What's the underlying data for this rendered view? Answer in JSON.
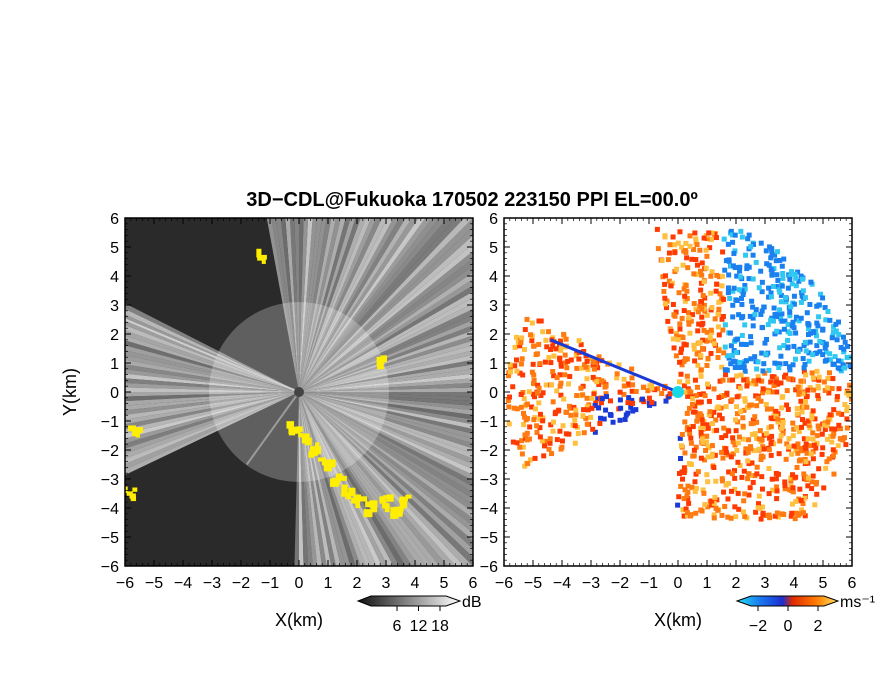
{
  "figure": {
    "title": "3D−CDL@Fukuoka 170502 223150 PPI EL=00.0º"
  },
  "chart_data": [
    {
      "type": "heatmap",
      "panel": "left",
      "title": "",
      "xlabel": "X(km)",
      "ylabel": "Y(km)",
      "xlim": [
        -6,
        6
      ],
      "ylim": [
        -6,
        6
      ],
      "xticks": [
        "−6",
        "−5",
        "−4",
        "−3",
        "−2",
        "−1",
        "0",
        "1",
        "2",
        "3",
        "4",
        "5",
        "6"
      ],
      "yticks": [
        "6",
        "5",
        "4",
        "3",
        "2",
        "1",
        "0",
        "−1",
        "−2",
        "−3",
        "−4",
        "−5",
        "−6"
      ],
      "radar_origin": [
        0,
        0
      ],
      "colorbar": {
        "unit": "dB",
        "ticks": [
          "6",
          "12",
          "18"
        ],
        "range": [
          0,
          24
        ],
        "colormap": "grayscale"
      },
      "overlay_color": "#ffee00",
      "colors": {
        "background": "#2a2a2a",
        "bright": "#f0f0f0"
      }
    },
    {
      "type": "heatmap",
      "panel": "right",
      "title": "",
      "xlabel": "X(km)",
      "ylabel": "",
      "xlim": [
        -6,
        6
      ],
      "ylim": [
        -6,
        6
      ],
      "xticks": [
        "−6",
        "−5",
        "−4",
        "−3",
        "−2",
        "−1",
        "0",
        "1",
        "2",
        "3",
        "4",
        "5",
        "6"
      ],
      "yticks": [
        "6",
        "5",
        "4",
        "3",
        "2",
        "1",
        "0",
        "−1",
        "−2",
        "−3",
        "−4",
        "−5",
        "−6"
      ],
      "radar_origin": [
        0,
        0
      ],
      "colorbar": {
        "unit": "ms⁻¹",
        "ticks": [
          "−2",
          "0",
          "2"
        ],
        "range": [
          -3,
          3
        ],
        "colormap": "doppler"
      },
      "colors": {
        "approach": "#1a4fe0",
        "recede": "#ff4a00",
        "marker": "#18d8e8"
      }
    }
  ]
}
